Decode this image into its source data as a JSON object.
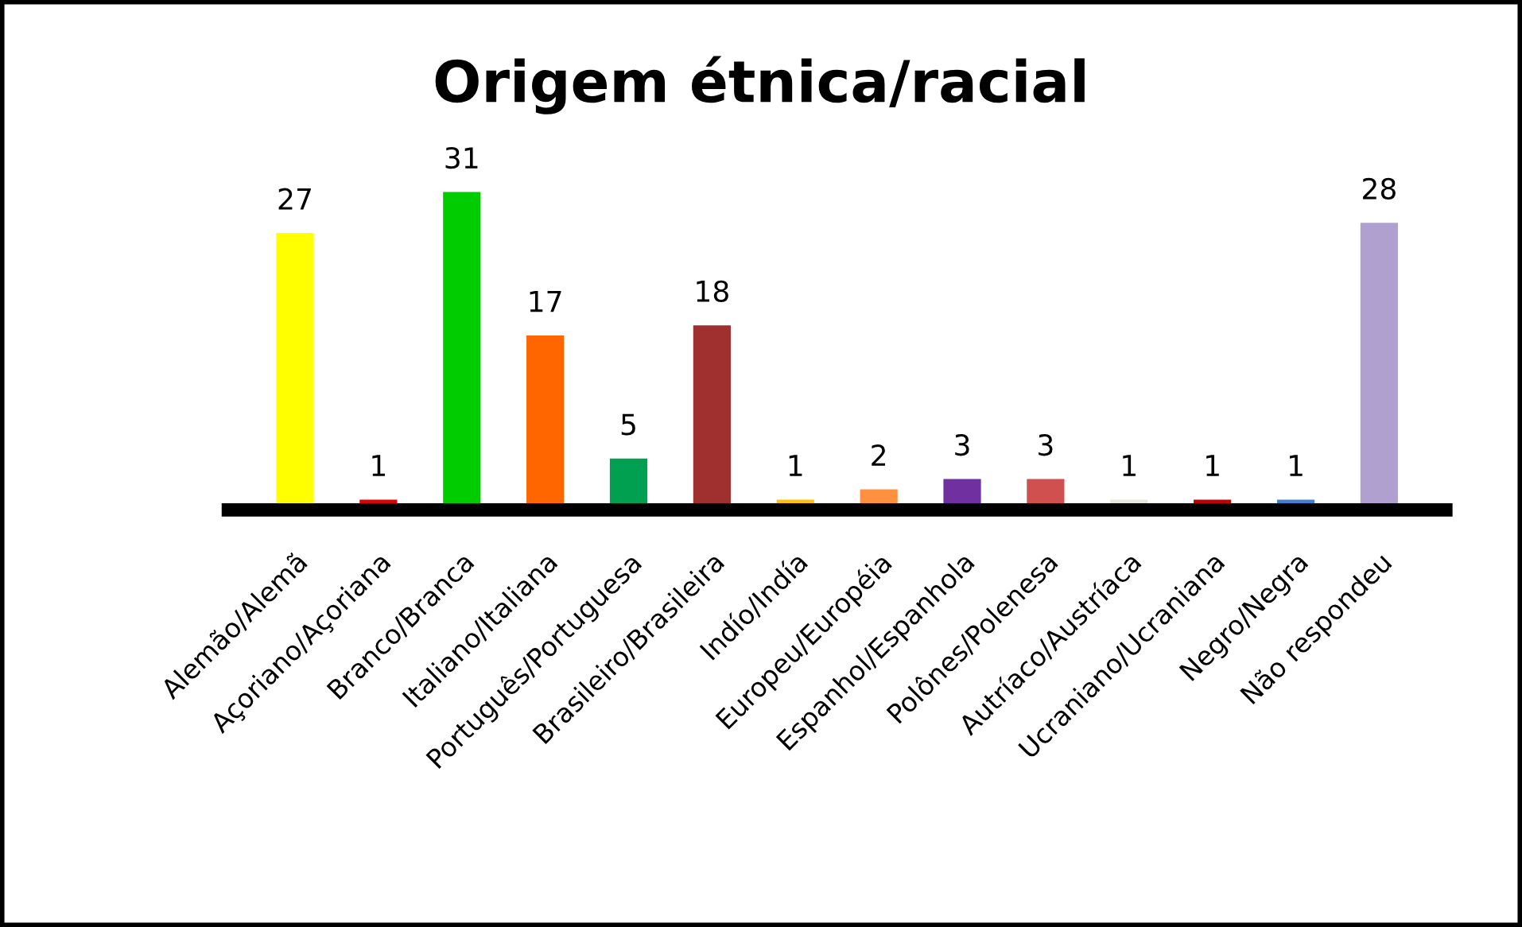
{
  "chart_data": {
    "type": "bar",
    "title": "Origem étnica/racial",
    "categories": [
      "Alemão/Alemã",
      "Açoriano/Açoriana",
      "Branco/Branca",
      "Italiano/Italiana",
      "Português/Portuguesa",
      "Brasileiro/Brasileira",
      "Indío/Indía",
      "Europeu/Européia",
      "Espanhol/Espanhola",
      "Polônes/Polenesa",
      "Autríaco/Austríaca",
      "Ucraniano/Ucraniana",
      "Negro/Negra",
      "Não respondeu"
    ],
    "values": [
      27,
      1,
      31,
      17,
      5,
      18,
      1,
      2,
      3,
      3,
      1,
      1,
      1,
      28
    ],
    "colors": [
      "#ffff00",
      "#e00000",
      "#00cc00",
      "#ff6600",
      "#00a050",
      "#a03030",
      "#ffc000",
      "#ff9040",
      "#7030a0",
      "#d05050",
      "#e8e8d8",
      "#c00000",
      "#4080d0",
      "#b0a0d0"
    ],
    "data_labels": true,
    "grid": false,
    "legend": false
  }
}
